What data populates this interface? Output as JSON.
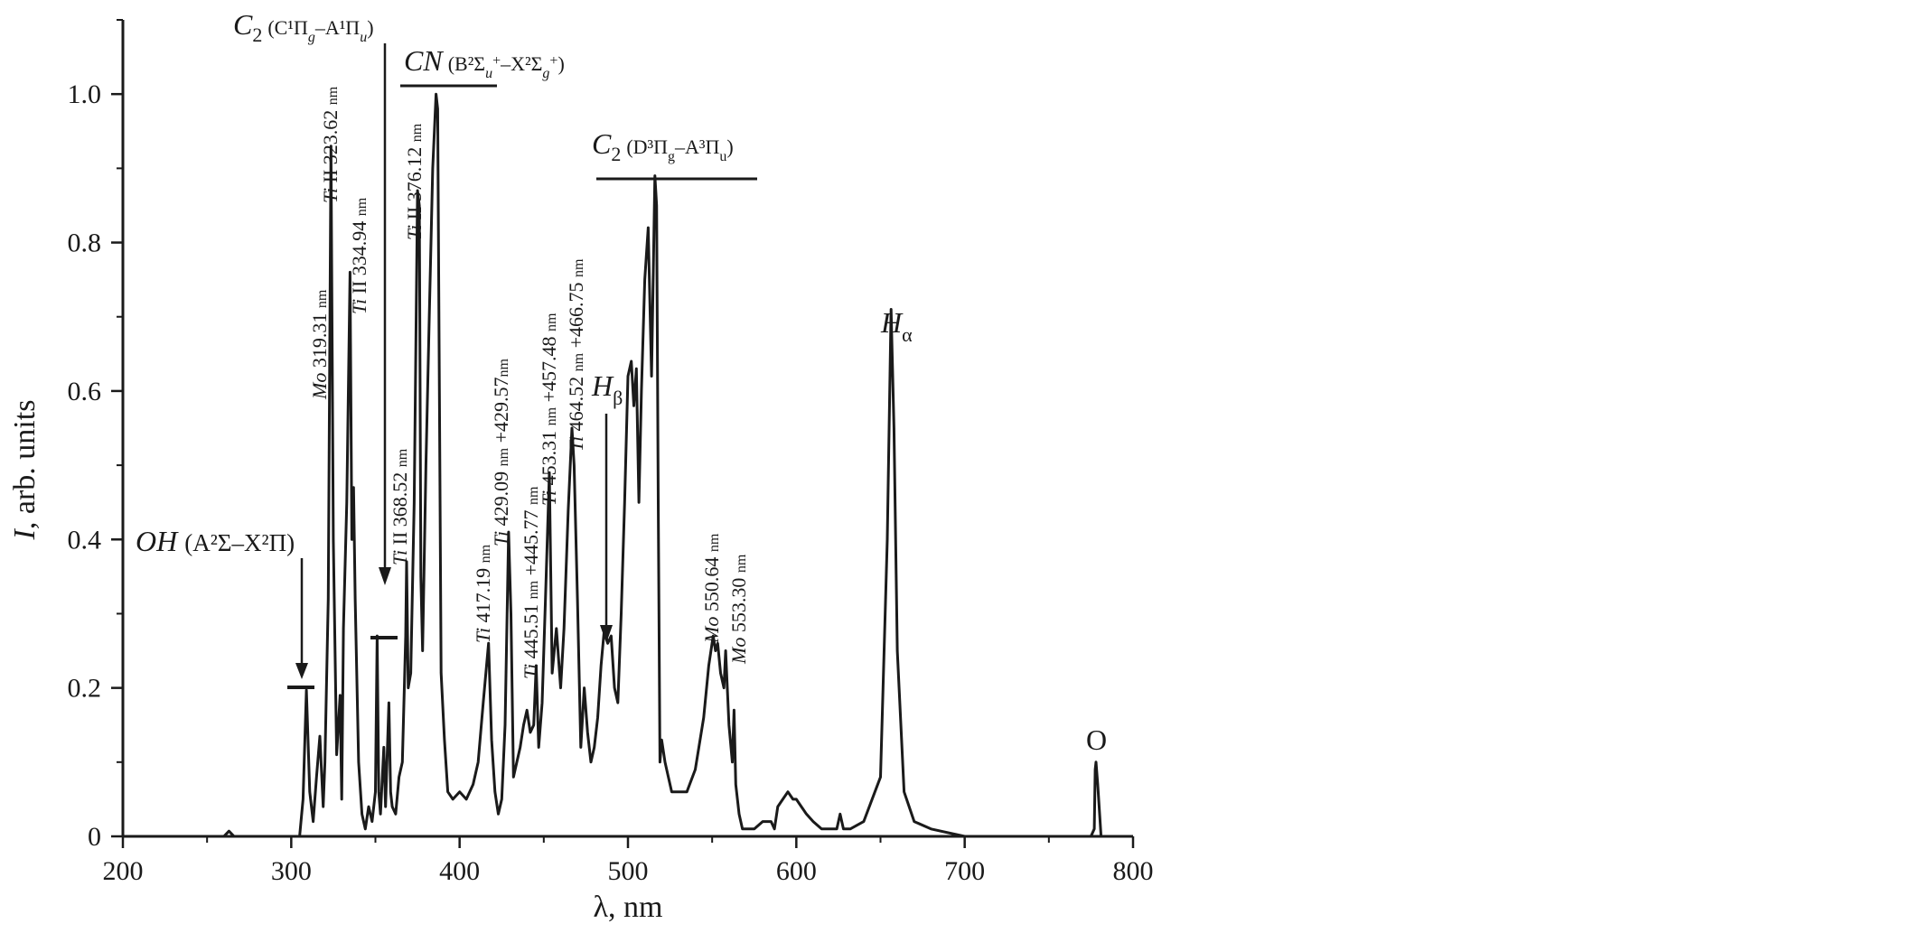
{
  "chart_data": {
    "type": "line",
    "xlabel": "λ, nm",
    "ylabel_italic": "I",
    "ylabel_rest": ", arb. units",
    "xlim": [
      200,
      800
    ],
    "ylim": [
      0,
      1.1
    ],
    "x_ticks": [
      200,
      300,
      400,
      500,
      600,
      700,
      800
    ],
    "x_tick_labels": [
      "200",
      "300",
      "400",
      "500",
      "600",
      "700",
      "800"
    ],
    "y_ticks": [
      0,
      0.2,
      0.4,
      0.6,
      0.8,
      1.0
    ],
    "y_tick_labels": [
      "0",
      "0.2",
      "0.4",
      "0.6",
      "0.8",
      "1.0"
    ],
    "grid": false,
    "series": [
      {
        "color": "#1a1a1a",
        "x": [
          200,
          260,
          263,
          266,
          300,
          305,
          307,
          309,
          311,
          313,
          315,
          317,
          319,
          320,
          322,
          323.6,
          325,
          327,
          329,
          330,
          331,
          333,
          334.9,
          336,
          337,
          338,
          340,
          342,
          344,
          346,
          348,
          350,
          351,
          352,
          353,
          355,
          356,
          358,
          359,
          360,
          362,
          364,
          366,
          368,
          368.5,
          369.5,
          371,
          373,
          375,
          376.1,
          377,
          378,
          380,
          382,
          384,
          386,
          387,
          388,
          389,
          391,
          393,
          396,
          400,
          404,
          408,
          411,
          414,
          417.2,
          419,
          421,
          423,
          425,
          427,
          429.1,
          430.5,
          432,
          434,
          436,
          438,
          440,
          442,
          444,
          445.5,
          447,
          449,
          451,
          453.3,
          455,
          457.5,
          460,
          462,
          464.5,
          466.7,
          468,
          470,
          472,
          474,
          476,
          478,
          480,
          482,
          484,
          486,
          488,
          490,
          492,
          494,
          496,
          498,
          500,
          502,
          503.5,
          505,
          506.5,
          508,
          510,
          512,
          514,
          516,
          517,
          518,
          519,
          520,
          522,
          524,
          526,
          528,
          530,
          535,
          540,
          545,
          548,
          550.6,
          552,
          553.3,
          555,
          557,
          558,
          560,
          562,
          563,
          564,
          566,
          568,
          570,
          575,
          580,
          585,
          587,
          589,
          592,
          595,
          598,
          600,
          603,
          606,
          610,
          615,
          620,
          624,
          626,
          628,
          632,
          640,
          650,
          654,
          656.3,
          658,
          660,
          664,
          670,
          680,
          700,
          740,
          770,
          775,
          777,
          777.5,
          778,
          779,
          781,
          790,
          800
        ],
        "y": [
          0.0,
          0.0,
          0.007,
          0.0,
          0.0,
          0.0,
          0.05,
          0.197,
          0.06,
          0.02,
          0.08,
          0.135,
          0.04,
          0.1,
          0.32,
          0.93,
          0.4,
          0.11,
          0.19,
          0.05,
          0.28,
          0.45,
          0.76,
          0.4,
          0.47,
          0.32,
          0.1,
          0.03,
          0.01,
          0.04,
          0.02,
          0.06,
          0.27,
          0.06,
          0.03,
          0.12,
          0.04,
          0.18,
          0.06,
          0.04,
          0.03,
          0.08,
          0.1,
          0.27,
          0.37,
          0.2,
          0.22,
          0.45,
          0.87,
          0.85,
          0.35,
          0.25,
          0.5,
          0.7,
          0.9,
          1.0,
          0.98,
          0.6,
          0.22,
          0.13,
          0.06,
          0.05,
          0.06,
          0.05,
          0.07,
          0.1,
          0.18,
          0.26,
          0.13,
          0.06,
          0.03,
          0.05,
          0.15,
          0.41,
          0.3,
          0.08,
          0.1,
          0.12,
          0.15,
          0.17,
          0.14,
          0.15,
          0.23,
          0.12,
          0.18,
          0.32,
          0.49,
          0.22,
          0.28,
          0.2,
          0.28,
          0.44,
          0.55,
          0.5,
          0.32,
          0.12,
          0.2,
          0.14,
          0.1,
          0.12,
          0.16,
          0.23,
          0.28,
          0.26,
          0.27,
          0.2,
          0.18,
          0.3,
          0.45,
          0.62,
          0.64,
          0.58,
          0.63,
          0.45,
          0.6,
          0.75,
          0.82,
          0.62,
          0.89,
          0.85,
          0.45,
          0.1,
          0.13,
          0.1,
          0.08,
          0.06,
          0.06,
          0.06,
          0.06,
          0.09,
          0.16,
          0.23,
          0.27,
          0.25,
          0.26,
          0.22,
          0.2,
          0.25,
          0.15,
          0.1,
          0.17,
          0.07,
          0.03,
          0.01,
          0.01,
          0.01,
          0.02,
          0.02,
          0.01,
          0.04,
          0.05,
          0.06,
          0.05,
          0.05,
          0.04,
          0.03,
          0.02,
          0.01,
          0.01,
          0.01,
          0.03,
          0.01,
          0.01,
          0.02,
          0.08,
          0.4,
          0.71,
          0.55,
          0.25,
          0.06,
          0.02,
          0.01,
          0.0,
          0.0,
          0.0,
          0.0,
          0.01,
          0.09,
          0.1,
          0.07,
          0.0,
          0.0,
          0.0
        ]
      }
    ],
    "annotations": {
      "oh_label": "OH",
      "oh_band": "(A²Σ–X²Π)",
      "c2_swan_upper_label": "C",
      "c2_sub_2": "2",
      "c2_upper_band": "(C¹Π",
      "c2_upper_g": "g",
      "c2_upper_dash": "–A¹Π",
      "c2_upper_u": "u",
      "c2_upper_close": ")",
      "cn_label": "CN",
      "cn_band": "(B²Σ",
      "cn_u": "u",
      "cn_plus1": "+",
      "cn_dash": "–X²Σ",
      "cn_g": "g",
      "cn_plus2": "+",
      "cn_close": ")",
      "c2_swan_label": "C",
      "c2_swan_sub": "2",
      "c2_swan_band": "(D³Π",
      "c2_swan_g": "g",
      "c2_swan_dash": "–A³Π",
      "c2_swan_u": "u",
      "c2_swan_close": ")",
      "h_alpha": "H",
      "h_alpha_sub": "α",
      "h_beta": "H",
      "h_beta_sub": "β",
      "o_label": "O",
      "peak_mo_319_el": "Mo",
      "peak_mo_319_val": "319.31",
      "peak_ti_323_el": "Ti",
      "peak_ti_323_val": "II 323.62",
      "peak_ti_334_el": "Ti",
      "peak_ti_334_val": "II 334.94",
      "peak_ti_368_el": "Ti",
      "peak_ti_368_val": "II 368.52",
      "peak_ti_376_el": "Ti",
      "peak_ti_376_val": "II 376.12",
      "peak_ti_417_el": "Ti",
      "peak_ti_417_val": "417.19",
      "peak_ti_429_el": "Ti",
      "peak_ti_429_val": "429.09",
      "peak_ti_429_plus": "+429.57",
      "peak_ti_445_el": "Ti",
      "peak_ti_445_val": "445.51",
      "peak_ti_445_plus": "+445.77",
      "peak_ti_453_el": "Ti",
      "peak_ti_453_val": "453.31",
      "peak_ti_453_plus": "+457.48",
      "peak_ti_464_el": "Ti",
      "peak_ti_464_val": "464.52",
      "peak_ti_464_plus": "+466.75",
      "peak_mo_550_el": "Mo",
      "peak_mo_550_val": "550.64",
      "peak_mo_553_el": "Mo",
      "peak_mo_553_val": "553.30",
      "unit": "nm"
    }
  }
}
